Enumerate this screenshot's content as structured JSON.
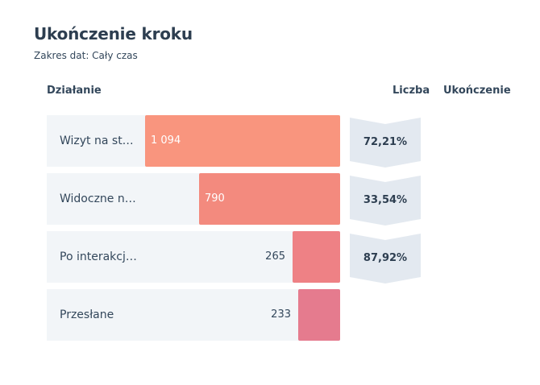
{
  "title": "Ukończenie kroku",
  "subtitle": "Zakres dat: Cały czas",
  "headers": {
    "action": "Działanie",
    "count": "Liczba",
    "completion": "Ukończenie"
  },
  "colors": {
    "bar1": "#f9957e",
    "bar2": "#f38a7e",
    "bar3": "#ee8185",
    "bar4": "#e57b8e",
    "row_bg": "#f2f5f8",
    "chevron": "#e3e9f0"
  },
  "chart_data": {
    "type": "bar",
    "orientation": "horizontal",
    "categories": [
      "Wizyt na st…",
      "Widoczne n…",
      "Po interakcj…",
      "Przesłane"
    ],
    "values": [
      1094,
      790,
      265,
      233
    ],
    "value_labels": [
      "1 094",
      "790",
      "265",
      "233"
    ],
    "completion_rates": [
      "72,21%",
      "33,54%",
      "87,92%"
    ],
    "title": "Ukończenie kroku",
    "xlabel": "",
    "ylabel": "",
    "xlim": [
      0,
      1094
    ]
  }
}
